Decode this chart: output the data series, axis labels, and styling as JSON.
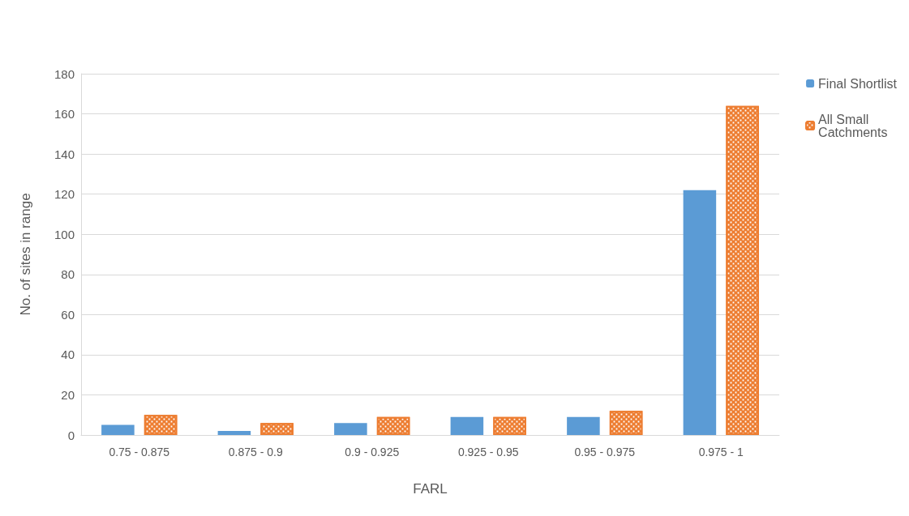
{
  "chart_data": {
    "type": "bar",
    "xlabel": "FARL",
    "ylabel": "No. of sites in range",
    "categories": [
      "0.75 - 0.875",
      "0.875 - 0.9",
      "0.9 - 0.925",
      "0.925 - 0.95",
      "0.95 - 0.975",
      "0.975 - 1"
    ],
    "series": [
      {
        "name": "Final Shortlist",
        "color": "#5b9bd5",
        "values": [
          5,
          2,
          6,
          9,
          9,
          122
        ]
      },
      {
        "name": "All Small Catchments",
        "color": "#ed7d31",
        "values": [
          10,
          6,
          9,
          9,
          12,
          164
        ]
      }
    ],
    "ylim": [
      0,
      180
    ],
    "yticks": [
      0,
      20,
      40,
      60,
      80,
      100,
      120,
      140,
      160,
      180
    ],
    "grid": "y",
    "legend": "right"
  }
}
